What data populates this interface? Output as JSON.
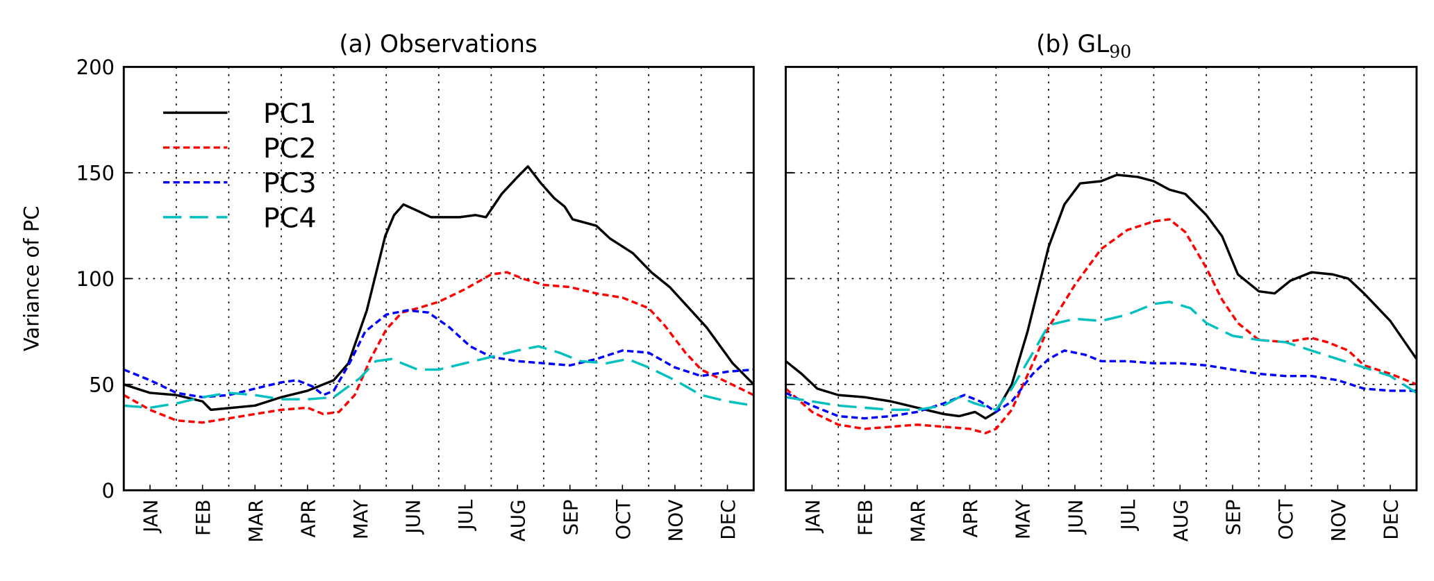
{
  "chart_data": [
    {
      "type": "line",
      "title": "(a) Observations",
      "xlabel": "",
      "ylabel": "Variance of PC",
      "ylim": [
        0,
        200
      ],
      "yticks": [
        "0",
        "50",
        "100",
        "150",
        "200"
      ],
      "xlim_months": [
        0,
        12
      ],
      "categories": [
        "JAN",
        "FEB",
        "MAR",
        "APR",
        "MAY",
        "JUN",
        "JUL",
        "AUG",
        "SEP",
        "OCT",
        "NOV",
        "DEC"
      ],
      "grid": true,
      "legend": {
        "placement": "top-left",
        "entries": [
          "PC1",
          "PC2",
          "PC3",
          "PC4"
        ]
      },
      "series": [
        {
          "name": "PC1",
          "color": "#000000",
          "style": "solid",
          "x": [
            0,
            0.5,
            1,
            1.5,
            1.66,
            2.5,
            3,
            3.5,
            4,
            4.28,
            4.63,
            4.98,
            5.15,
            5.33,
            5.6,
            5.85,
            6.4,
            6.7,
            6.9,
            7.2,
            7.5,
            7.7,
            7.95,
            8.2,
            8.4,
            8.55,
            9,
            9.26,
            9.7,
            10.05,
            10.4,
            11.1,
            11.6,
            12
          ],
          "y": [
            50,
            46,
            45,
            42,
            38,
            40,
            44,
            47,
            52,
            60,
            85,
            120,
            130,
            135,
            132,
            129,
            129,
            130,
            129,
            140,
            148,
            153,
            145,
            138,
            134,
            128,
            125,
            119,
            112,
            103,
            96,
            77,
            60,
            50
          ]
        },
        {
          "name": "PC2",
          "color": "#ff0000",
          "style": "dashed",
          "x": [
            0,
            0.5,
            1,
            1.5,
            2,
            2.5,
            3,
            3.5,
            3.8,
            4.1,
            4.4,
            4.7,
            5,
            5.3,
            5.6,
            6,
            6.5,
            7,
            7.3,
            7.6,
            8,
            8.5,
            9,
            9.5,
            10,
            10.3,
            10.7,
            11,
            11.5,
            12
          ],
          "y": [
            45,
            38,
            33,
            32,
            34,
            36,
            38,
            39,
            36,
            37,
            45,
            62,
            76,
            84,
            86,
            89,
            95,
            102,
            103,
            100,
            97,
            96,
            93,
            91,
            86,
            78,
            65,
            57,
            51,
            45
          ]
        },
        {
          "name": "PC3",
          "color": "#0000ff",
          "style": "dashed",
          "x": [
            0,
            0.5,
            1,
            1.5,
            2,
            2.5,
            3,
            3.3,
            3.6,
            3.8,
            4,
            4.3,
            4.6,
            5,
            5.4,
            5.8,
            6.2,
            6.6,
            7,
            7.5,
            8,
            8.5,
            9,
            9.5,
            10,
            10.5,
            11,
            11.5,
            12
          ],
          "y": [
            57,
            52,
            46,
            44,
            45,
            48,
            51,
            52,
            49,
            45,
            47,
            60,
            75,
            83,
            85,
            84,
            77,
            68,
            63,
            61,
            60,
            59,
            62,
            66,
            65,
            58,
            54,
            56,
            57
          ]
        },
        {
          "name": "PC4",
          "color": "#00bfbf",
          "style": "long-dashed",
          "x": [
            0,
            0.5,
            1,
            1.5,
            2,
            2.5,
            3,
            3.5,
            4,
            4.5,
            4.8,
            5.1,
            5.6,
            6,
            6.5,
            7,
            7.5,
            7.9,
            8.3,
            8.7,
            9.2,
            9.6,
            10,
            10.5,
            11,
            11.5,
            12
          ],
          "y": [
            40,
            39,
            41,
            44,
            46,
            45,
            43,
            43,
            44,
            53,
            61,
            62,
            57,
            57,
            60,
            63,
            66,
            68,
            65,
            61,
            60,
            62,
            58,
            52,
            45,
            42,
            40
          ]
        }
      ]
    },
    {
      "type": "line",
      "title": "(b) GL",
      "title_subscript": "90",
      "xlabel": "",
      "ylabel": "",
      "ylim": [
        0,
        200
      ],
      "xlim_months": [
        0,
        12
      ],
      "categories": [
        "JAN",
        "FEB",
        "MAR",
        "APR",
        "MAY",
        "JUN",
        "JUL",
        "AUG",
        "SEP",
        "OCT",
        "NOV",
        "DEC"
      ],
      "grid": true,
      "series": [
        {
          "name": "PC1",
          "color": "#000000",
          "style": "solid",
          "x": [
            0,
            0.3,
            0.6,
            1,
            1.5,
            2,
            2.5,
            3,
            3.3,
            3.6,
            3.8,
            4,
            4.3,
            4.6,
            5,
            5.3,
            5.6,
            6,
            6.3,
            6.7,
            7,
            7.3,
            7.6,
            8,
            8.3,
            8.6,
            9,
            9.3,
            9.6,
            10,
            10.4,
            10.7,
            11,
            11.5,
            12
          ],
          "y": [
            61,
            55,
            48,
            45,
            44,
            42,
            39,
            36,
            35,
            37,
            34,
            37,
            50,
            75,
            115,
            135,
            145,
            146,
            149,
            148,
            146,
            142,
            140,
            130,
            120,
            102,
            94,
            93,
            99,
            103,
            102,
            100,
            93,
            80,
            62
          ]
        },
        {
          "name": "PC2",
          "color": "#ff0000",
          "style": "dashed",
          "x": [
            0,
            0.5,
            1,
            1.5,
            2,
            2.5,
            3,
            3.5,
            3.8,
            4,
            4.3,
            4.7,
            5,
            5.5,
            6,
            6.5,
            7,
            7.3,
            7.6,
            8,
            8.3,
            8.6,
            9,
            9.5,
            10,
            10.3,
            10.7,
            11,
            11.5,
            12
          ],
          "y": [
            48,
            37,
            31,
            29,
            30,
            31,
            30,
            29,
            27,
            29,
            38,
            60,
            77,
            97,
            114,
            123,
            127,
            128,
            122,
            105,
            90,
            79,
            71,
            70,
            72,
            70,
            66,
            59,
            55,
            50
          ]
        },
        {
          "name": "PC3",
          "color": "#0000ff",
          "style": "dashed",
          "x": [
            0,
            0.5,
            1,
            1.5,
            2,
            2.5,
            3,
            3.4,
            3.7,
            4,
            4.3,
            4.7,
            5,
            5.3,
            5.7,
            6,
            6.5,
            7,
            7.5,
            8,
            8.5,
            9,
            9.5,
            10,
            10.5,
            11,
            11.5,
            12
          ],
          "y": [
            46,
            40,
            35,
            34,
            35,
            37,
            41,
            45,
            42,
            37,
            42,
            55,
            62,
            66,
            64,
            61,
            61,
            60,
            60,
            59,
            57,
            55,
            54,
            54,
            52,
            48,
            47,
            47
          ]
        },
        {
          "name": "PC4",
          "color": "#00bfbf",
          "style": "long-dashed",
          "x": [
            0,
            0.5,
            1,
            1.5,
            2,
            2.5,
            3,
            3.3,
            3.6,
            4,
            4.3,
            4.7,
            5,
            5.5,
            6,
            6.5,
            7,
            7.3,
            7.7,
            8,
            8.5,
            9,
            9.5,
            10,
            10.5,
            11,
            11.5,
            12
          ],
          "y": [
            44,
            42,
            40,
            39,
            38,
            38,
            40,
            44,
            41,
            38,
            48,
            65,
            78,
            81,
            80,
            83,
            88,
            89,
            86,
            79,
            73,
            71,
            70,
            66,
            62,
            58,
            54,
            46
          ]
        }
      ]
    }
  ]
}
